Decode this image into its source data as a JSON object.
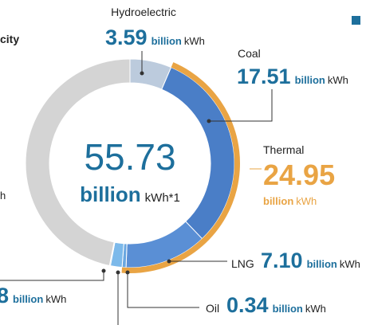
{
  "chart_data": {
    "type": "donut",
    "center_value": "55.73",
    "center_unit_bold": "billion",
    "center_unit": "kWh*1",
    "unit_bold": "billion",
    "unit": "kWh",
    "categories": [
      "Hydroelectric",
      "Coal",
      "LNG",
      "Oil",
      null,
      null,
      null
    ],
    "values": [
      3.59,
      17.51,
      7.1,
      0.34,
      1.0,
      0.08,
      26.11
    ],
    "value_labels": [
      "3.59",
      "17.51",
      "7.10",
      "0.34",
      null,
      null,
      null
    ],
    "colors": [
      "#bccbdd",
      "#4a7ec7",
      "#5a8fd5",
      "#6aa7e0",
      "#7cb9ea",
      "#c9c9c9",
      "#d4d4d4"
    ],
    "group": {
      "name": "Thermal",
      "value": 24.95,
      "color": "#e9a444"
    },
    "partial_texts": [
      "city",
      "h",
      "8"
    ]
  }
}
